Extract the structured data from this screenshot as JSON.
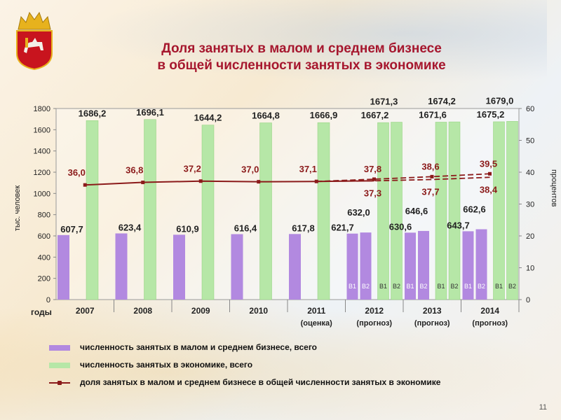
{
  "slide": {
    "title_line1": "Доля занятых в малом и среднем бизнесе",
    "title_line2": "в общей численности занятых в экономике",
    "page_number": "11",
    "emblem": "chelyabinsk-region-coat-of-arms-icon"
  },
  "legend": {
    "small_business": "численность занятых в малом и среднем бизнесе, всего",
    "economy": "численность занятых в экономике, всего",
    "share": "доля занятых в малом и среднем бизнесе в общей численности занятых в экономике"
  },
  "colors": {
    "title": "#a6172e",
    "small_business": "#b289e0",
    "economy": "#b6e7a7",
    "share_line": "#8b1a1a",
    "label": "#222222"
  },
  "chart_data": {
    "type": "bar",
    "xlabel_prefix": "годы",
    "ylabel_left": "тыс. человек",
    "ylabel_right": "процентов",
    "ylim_left": [
      0,
      1800
    ],
    "ylim_right": [
      0,
      60
    ],
    "yticks_left": [
      "0",
      "200",
      "400",
      "600",
      "800",
      "1000",
      "1200",
      "1400",
      "1600",
      "1800"
    ],
    "yticks_right": [
      "0",
      "10",
      "20",
      "30",
      "40",
      "50",
      "60"
    ],
    "groups": [
      {
        "year": "2007",
        "sub": "",
        "mb": [
          {
            "v": 607.7,
            "l": "607,7",
            "tag": ""
          }
        ],
        "ec": [
          {
            "v": 1686.2,
            "l": "1686,2",
            "tag": ""
          }
        ],
        "share": [
          {
            "v": 36.0,
            "l": "36,0"
          }
        ]
      },
      {
        "year": "2008",
        "sub": "",
        "mb": [
          {
            "v": 623.4,
            "l": "623,4",
            "tag": ""
          }
        ],
        "ec": [
          {
            "v": 1696.1,
            "l": "1696,1",
            "tag": ""
          }
        ],
        "share": [
          {
            "v": 36.8,
            "l": "36,8"
          }
        ]
      },
      {
        "year": "2009",
        "sub": "",
        "mb": [
          {
            "v": 610.9,
            "l": "610,9",
            "tag": ""
          }
        ],
        "ec": [
          {
            "v": 1644.2,
            "l": "1644,2",
            "tag": ""
          }
        ],
        "share": [
          {
            "v": 37.2,
            "l": "37,2"
          }
        ]
      },
      {
        "year": "2010",
        "sub": "",
        "mb": [
          {
            "v": 616.4,
            "l": "616,4",
            "tag": ""
          }
        ],
        "ec": [
          {
            "v": 1664.8,
            "l": "1664,8",
            "tag": ""
          }
        ],
        "share": [
          {
            "v": 37.0,
            "l": "37,0"
          }
        ]
      },
      {
        "year": "2011",
        "sub": "(оценка)",
        "mb": [
          {
            "v": 617.8,
            "l": "617,8",
            "tag": ""
          }
        ],
        "ec": [
          {
            "v": 1666.9,
            "l": "1666,9",
            "tag": ""
          }
        ],
        "share": [
          {
            "v": 37.1,
            "l": "37,1"
          }
        ]
      },
      {
        "year": "2012",
        "sub": "(прогноз)",
        "mb": [
          {
            "v": 621.7,
            "l": "621,7",
            "tag": "В1"
          },
          {
            "v": 632.0,
            "l": "632,0",
            "tag": "В2"
          }
        ],
        "ec": [
          {
            "v": 1667.2,
            "l": "1667,2",
            "tag": "В1"
          },
          {
            "v": 1671.3,
            "l": "1671,3",
            "tag": "В2"
          }
        ],
        "share": [
          {
            "v": 37.3,
            "l": "37,3"
          },
          {
            "v": 37.8,
            "l": "37,8"
          }
        ]
      },
      {
        "year": "2013",
        "sub": "(прогноз)",
        "mb": [
          {
            "v": 630.6,
            "l": "630,6",
            "tag": "В1"
          },
          {
            "v": 646.6,
            "l": "646,6",
            "tag": "В2"
          }
        ],
        "ec": [
          {
            "v": 1671.6,
            "l": "1671,6",
            "tag": "В1"
          },
          {
            "v": 1674.2,
            "l": "1674,2",
            "tag": "В2"
          }
        ],
        "share": [
          {
            "v": 37.7,
            "l": "37,7"
          },
          {
            "v": 38.6,
            "l": "38,6"
          }
        ]
      },
      {
        "year": "2014",
        "sub": "(прогноз)",
        "mb": [
          {
            "v": 643.7,
            "l": "643,7",
            "tag": "В1"
          },
          {
            "v": 662.6,
            "l": "662,6",
            "tag": "В2"
          }
        ],
        "ec": [
          {
            "v": 1675.2,
            "l": "1675,2",
            "tag": "В1"
          },
          {
            "v": 1679.0,
            "l": "1679,0",
            "tag": "В2"
          }
        ],
        "share": [
          {
            "v": 38.4,
            "l": "38,4"
          },
          {
            "v": 39.5,
            "l": "39,5"
          }
        ]
      }
    ]
  }
}
